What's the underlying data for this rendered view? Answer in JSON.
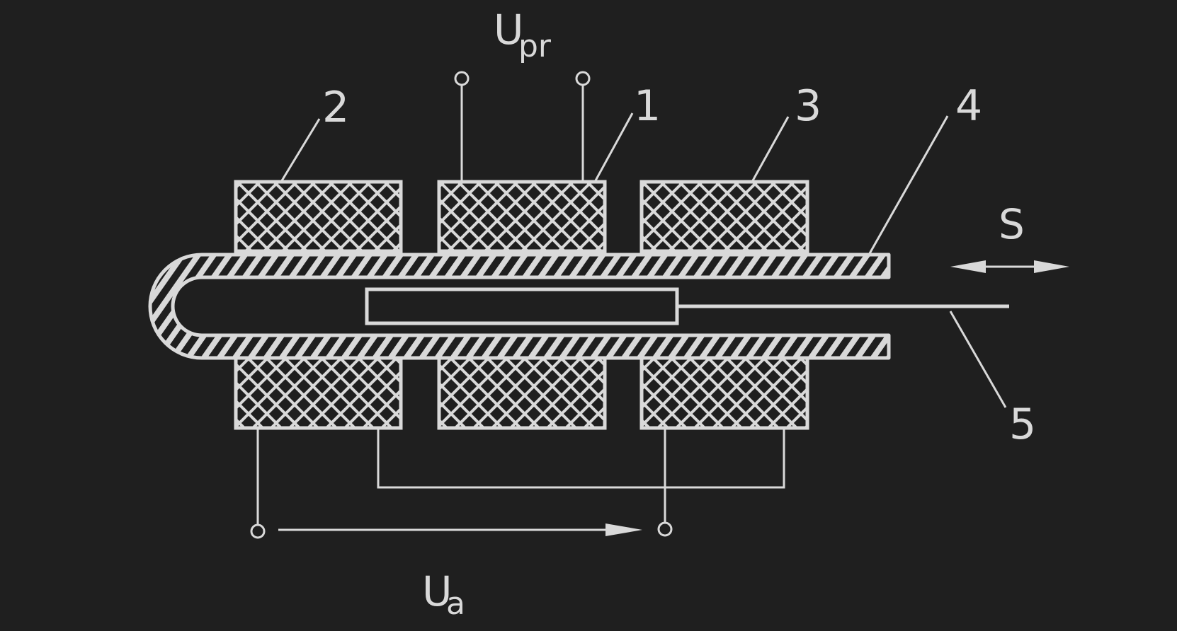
{
  "diagram": {
    "colors": {
      "background": "#1f1f1f",
      "line": "#d9d9d9"
    },
    "labels": {
      "u_pr_main": "U",
      "u_pr_sub": "pr",
      "u_a_main": "U",
      "u_a_sub": "a",
      "coil_2": "2",
      "coil_1": "1",
      "coil_3": "3",
      "tube_4": "4",
      "core_5": "5",
      "displacement_s": "S"
    }
  }
}
